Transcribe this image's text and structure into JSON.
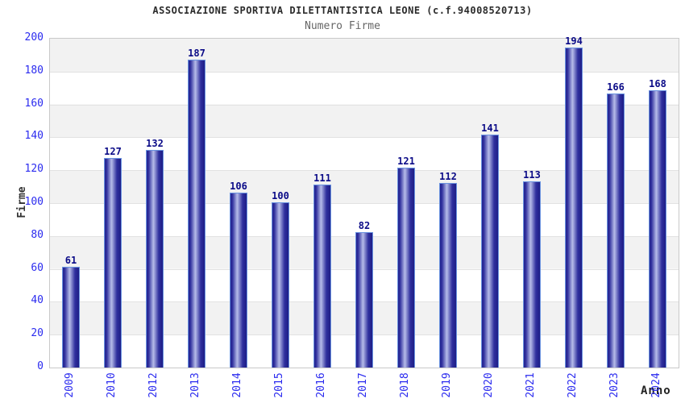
{
  "chart_data": {
    "type": "bar",
    "title": "ASSOCIAZIONE SPORTIVA DILETTANTISTICA LEONE (c.f.94008520713)",
    "subtitle": "Numero Firme",
    "xlabel": "Anno",
    "ylabel": "Firme",
    "categories": [
      "2009",
      "2010",
      "2012",
      "2013",
      "2014",
      "2015",
      "2016",
      "2017",
      "2018",
      "2019",
      "2020",
      "2021",
      "2022",
      "2023",
      "2024"
    ],
    "values": [
      61,
      127,
      132,
      187,
      106,
      100,
      111,
      82,
      121,
      112,
      141,
      113,
      194,
      166,
      168
    ],
    "ylim": [
      0,
      200
    ],
    "yticks": [
      0,
      20,
      40,
      60,
      80,
      100,
      120,
      140,
      160,
      180,
      200
    ],
    "grid": "horizontal alternating bands every 20 units",
    "legend_position": "none",
    "colors": {
      "tick_label": "#2b2bef",
      "value_label": "#0a0a87",
      "bar_dark": "#23238f",
      "bar_highlight": "#b6bce9",
      "bar_border": "#6a93e0",
      "band_gray": "#f2f2f2",
      "band_white": "#ffffff",
      "plot_border": "#c9c9c9",
      "title": "#2b2b2b",
      "subtitle": "#666666",
      "axis_title": "#333333"
    }
  }
}
